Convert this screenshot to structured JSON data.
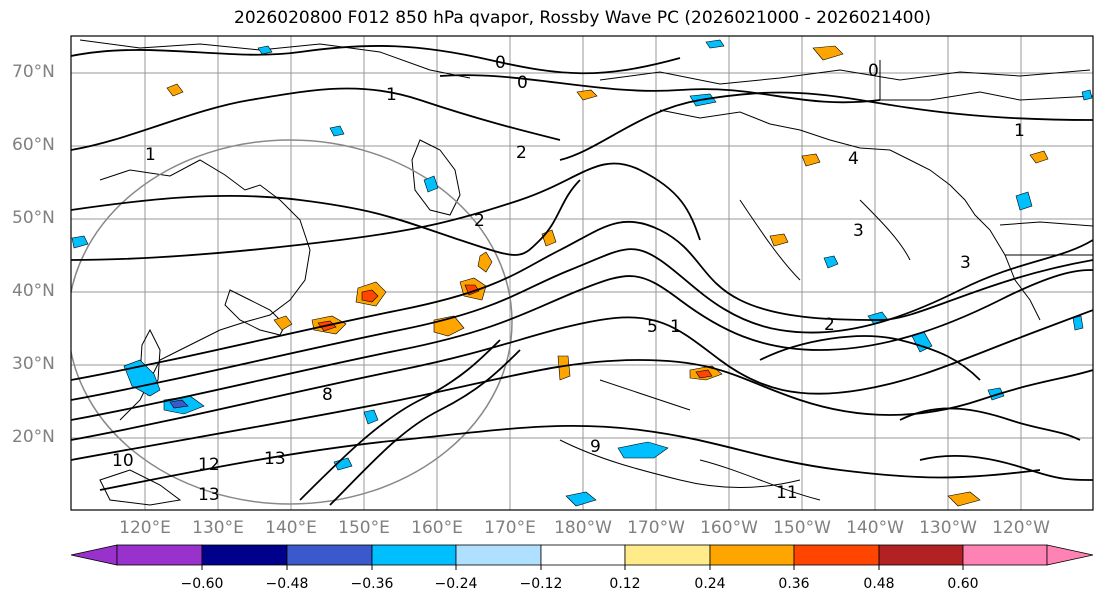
{
  "title": "2026020800 F012 850 hPa qvapor, Rossby Wave PC (2026021000 - 2026021400)",
  "lat_labels": [
    "70°N",
    "60°N",
    "50°N",
    "40°N",
    "30°N",
    "20°N"
  ],
  "lon_labels": [
    "120°E",
    "130°E",
    "140°E",
    "150°E",
    "160°E",
    "170°E",
    "180°W",
    "170°W",
    "160°W",
    "150°W",
    "140°W",
    "130°W",
    "120°W"
  ],
  "colorbar": {
    "colors": [
      "#9932cc",
      "#00008b",
      "#3a5acc",
      "#00bfff",
      "#b0e0ff",
      "#ffffff",
      "#ffeb8a",
      "#ffa500",
      "#ff4500",
      "#b22222",
      "#ff82b4"
    ],
    "ticks": [
      "−0.60",
      "−0.48",
      "−0.36",
      "−0.24",
      "−0.12",
      "0.12",
      "0.24",
      "0.36",
      "0.48",
      "0.60"
    ]
  },
  "contour_labels": [
    "0",
    "0",
    "0",
    "1",
    "1",
    "1",
    "1",
    "2",
    "2",
    "2",
    "3",
    "3",
    "4",
    "5",
    "8",
    "9",
    "10",
    "11",
    "12",
    "13",
    "13"
  ]
}
